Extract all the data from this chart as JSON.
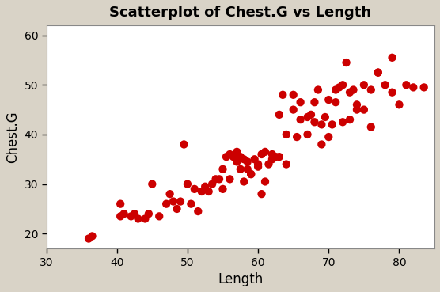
{
  "title": "Scatterplot of Chest.G vs Length",
  "xlabel": "Length",
  "ylabel": "Chest.G",
  "xlim": [
    30,
    85
  ],
  "ylim": [
    17,
    62
  ],
  "xticks": [
    30,
    40,
    50,
    60,
    70,
    80
  ],
  "yticks": [
    20,
    30,
    40,
    50,
    60
  ],
  "marker_color": "#CC0000",
  "background_color": "#D9D3C7",
  "plot_bg": "#FFFFFF",
  "marker_size": 55,
  "x": [
    36.0,
    36.5,
    40.5,
    40.5,
    41.0,
    42.0,
    42.5,
    43.0,
    44.0,
    44.5,
    45.0,
    46.0,
    47.0,
    47.5,
    48.0,
    48.5,
    49.0,
    49.5,
    50.0,
    50.5,
    51.0,
    51.5,
    52.0,
    52.5,
    53.0,
    53.5,
    54.0,
    54.5,
    55.0,
    55.5,
    56.0,
    56.5,
    57.0,
    57.5,
    57.5,
    58.0,
    58.5,
    58.5,
    59.0,
    59.5,
    60.0,
    60.0,
    60.5,
    61.0,
    61.5,
    62.0,
    62.5,
    63.0,
    63.5,
    64.0,
    65.0,
    65.5,
    66.0,
    67.0,
    67.5,
    68.0,
    68.5,
    69.0,
    69.5,
    70.0,
    70.5,
    71.0,
    71.5,
    72.0,
    72.5,
    73.0,
    73.5,
    74.0,
    75.0,
    76.0,
    77.0,
    79.0,
    83.5,
    55.0,
    56.0,
    57.0,
    58.0,
    59.0,
    60.5,
    61.0,
    62.0,
    63.0,
    64.0,
    65.0,
    66.0,
    67.0,
    68.0,
    69.0,
    70.0,
    71.0,
    72.0,
    73.0,
    74.0,
    75.0,
    76.0,
    77.0,
    78.0,
    79.0,
    80.0,
    81.0,
    82.0
  ],
  "y": [
    19.0,
    19.5,
    23.5,
    26.0,
    24.0,
    23.5,
    24.0,
    23.0,
    23.0,
    24.0,
    30.0,
    23.5,
    26.0,
    28.0,
    26.5,
    25.0,
    26.5,
    38.0,
    30.0,
    26.0,
    29.0,
    24.5,
    28.5,
    29.5,
    28.5,
    30.0,
    31.0,
    31.0,
    29.0,
    35.5,
    31.0,
    35.5,
    34.5,
    33.0,
    35.5,
    30.5,
    34.5,
    33.0,
    32.0,
    35.0,
    33.5,
    34.0,
    36.0,
    30.5,
    34.0,
    35.0,
    35.5,
    44.0,
    48.0,
    34.0,
    48.0,
    39.5,
    46.5,
    40.0,
    44.0,
    42.5,
    49.0,
    38.0,
    43.5,
    39.5,
    42.0,
    46.5,
    49.5,
    42.5,
    54.5,
    43.0,
    49.0,
    45.0,
    45.0,
    41.5,
    52.5,
    55.5,
    49.5,
    33.0,
    36.0,
    36.5,
    35.0,
    32.0,
    28.0,
    36.5,
    36.0,
    35.5,
    40.0,
    45.0,
    43.0,
    43.5,
    46.5,
    42.0,
    47.0,
    49.0,
    50.0,
    48.5,
    46.0,
    50.0,
    49.0,
    52.5,
    50.0,
    48.5,
    46.0,
    50.0,
    49.5
  ]
}
